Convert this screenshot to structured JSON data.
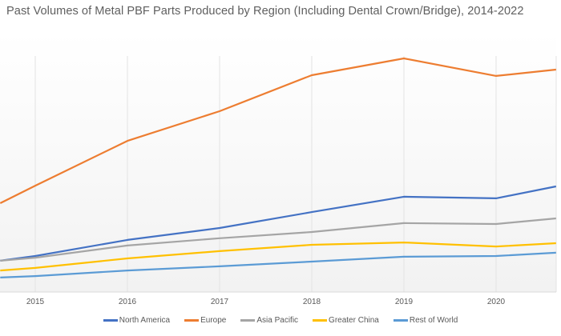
{
  "chart_data": {
    "type": "line",
    "title": "Past Volumes of Metal PBF Parts Produced by Region (Including Dental Crown/Bridge), 2014-2022",
    "xlabel": "",
    "ylabel": "",
    "y_units": "relative index (no y-axis labels shown; values estimated, Europe 2019 = 100)",
    "x_ticks": [
      "2015",
      "2016",
      "2017",
      "2018",
      "2019",
      "2020"
    ],
    "xlim": [
      2014.62,
      2021.3
    ],
    "ylim": [
      0,
      112
    ],
    "grid": "vertical",
    "legend_position": "bottom",
    "x": [
      2014.62,
      2015,
      2016,
      2017,
      2018,
      2019,
      2020,
      2020.65
    ],
    "series": [
      {
        "name": "North America",
        "color": "#4472c4",
        "values": [
          13.4,
          15.4,
          22.3,
          27.4,
          34.2,
          40.8,
          40.1,
          45.2
        ]
      },
      {
        "name": "Europe",
        "color": "#ed7d31",
        "values": [
          38.0,
          45.5,
          64.7,
          77.4,
          92.8,
          100,
          92.5,
          95.2
        ]
      },
      {
        "name": "Asia Pacific",
        "color": "#a5a5a5",
        "values": [
          13.4,
          14.7,
          19.9,
          23.0,
          25.7,
          29.5,
          29.1,
          31.5
        ]
      },
      {
        "name": "Greater China",
        "color": "#ffc000",
        "values": [
          9.2,
          10.3,
          14.4,
          17.5,
          20.2,
          21.2,
          19.5,
          20.9
        ]
      },
      {
        "name": "Rest of World",
        "color": "#5b9bd5",
        "values": [
          6.2,
          6.8,
          9.2,
          11.0,
          13.0,
          15.1,
          15.4,
          16.8
        ]
      }
    ]
  }
}
